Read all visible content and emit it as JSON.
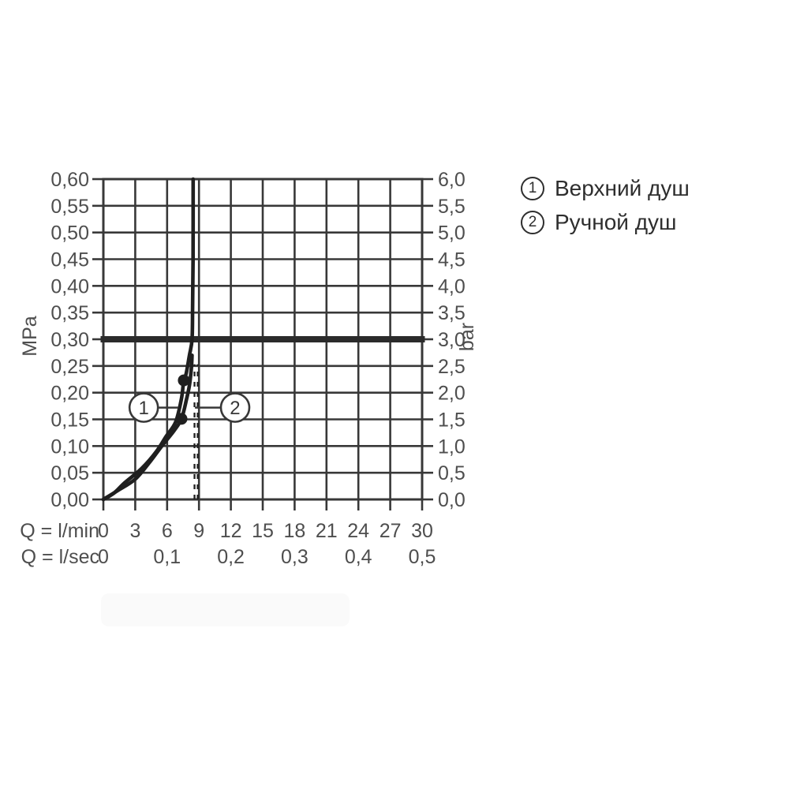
{
  "page": {
    "background": "#ffffff"
  },
  "colors": {
    "ink": "#383838",
    "curve": "#1f1f1f",
    "label": "#4e4e4e",
    "legend_text": "#2e2e2e",
    "reference_line": "#2b2b2b",
    "background": "#ffffff"
  },
  "legend": {
    "items": [
      {
        "marker": "1",
        "label": "Верхний душ"
      },
      {
        "marker": "2",
        "label": "Ручной душ"
      }
    ]
  },
  "chart_data": {
    "type": "line",
    "title": "",
    "grid": true,
    "legend_position": "right",
    "x_axis": {
      "label": "Q = l/min",
      "min": 0,
      "max": 30,
      "tick_step": 3,
      "tick_labels": [
        "0",
        "3",
        "6",
        "9",
        "12",
        "15",
        "18",
        "21",
        "24",
        "27",
        "30"
      ]
    },
    "x_axis_secondary": {
      "label": "Q = l/sec",
      "tick_labels": [
        "0",
        "0,1",
        "0,2",
        "0,3",
        "0,4",
        "0,5"
      ],
      "tick_positions_lmin": [
        0,
        6,
        12,
        18,
        24,
        30
      ]
    },
    "y_axis_left": {
      "label": "MPa",
      "min": 0,
      "max": 0.6,
      "tick_step": 0.05,
      "tick_labels": [
        "0,60",
        "0,55",
        "0,50",
        "0,45",
        "0,40",
        "0,35",
        "0,30",
        "0,25",
        "0,20",
        "0,15",
        "0,10",
        "0,05",
        "0,00"
      ]
    },
    "y_axis_right": {
      "label": "bar",
      "min": 0,
      "max": 6.0,
      "tick_step": 0.5,
      "tick_labels": [
        "6,0",
        "5,5",
        "5,0",
        "4,5",
        "4,0",
        "3,5",
        "3,0",
        "2,5",
        "2,0",
        "1,5",
        "1,0",
        "0,5",
        "0,0"
      ]
    },
    "reference_line": {
      "mpa": 0.3,
      "bar": 3.0
    },
    "series": [
      {
        "name": "Верхний душ",
        "marker_id": "1",
        "style": "solid",
        "points": [
          [
            0,
            0
          ],
          [
            1.0,
            0.012
          ],
          [
            2.0,
            0.031
          ],
          [
            3.6,
            0.058
          ],
          [
            5.0,
            0.09
          ],
          [
            5.9,
            0.118
          ],
          [
            6.8,
            0.145
          ],
          [
            7.35,
            0.189
          ],
          [
            7.57,
            0.223
          ],
          [
            7.8,
            0.236
          ],
          [
            8.1,
            0.27
          ],
          [
            8.35,
            0.3
          ],
          [
            8.4,
            0.36
          ],
          [
            8.44,
            0.45
          ],
          [
            8.45,
            0.6
          ]
        ],
        "highlight_point": [
          7.57,
          0.223
        ]
      },
      {
        "name": "Ручной душ",
        "marker_id": "2",
        "style": "solid",
        "points": [
          [
            0,
            0
          ],
          [
            1.3,
            0.016
          ],
          [
            3.0,
            0.038
          ],
          [
            4.4,
            0.071
          ],
          [
            5.5,
            0.1
          ],
          [
            6.7,
            0.13
          ],
          [
            7.35,
            0.151
          ],
          [
            7.8,
            0.185
          ],
          [
            8.1,
            0.214
          ],
          [
            8.28,
            0.245
          ],
          [
            8.35,
            0.27
          ]
        ],
        "highlight_point": [
          7.35,
          0.151
        ]
      }
    ],
    "dashed_guides": {
      "x_lmin": [
        8.58,
        8.88
      ],
      "mpa_range": [
        0,
        0.253
      ]
    },
    "annotations": [
      {
        "label": "1",
        "circle_at": [
          3.8,
          0.172
        ],
        "line_to": [
          7.05,
          0.172
        ]
      },
      {
        "label": "2",
        "circle_at": [
          12.4,
          0.172
        ],
        "line_to": [
          8.62,
          0.172
        ]
      }
    ]
  }
}
